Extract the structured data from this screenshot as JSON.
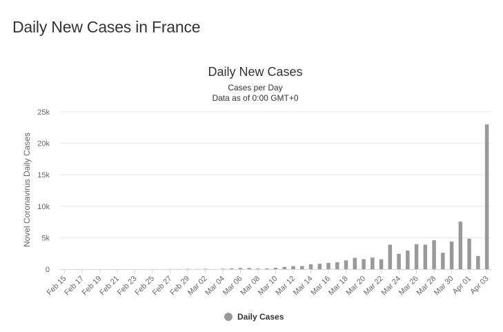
{
  "page": {
    "title": "Daily New Cases in France"
  },
  "colors": {
    "bar": "#999999",
    "grid": "#e6e6e6",
    "axis": "#ccd6eb",
    "text": "#666666"
  },
  "chart_data": {
    "type": "bar",
    "title": "Daily New Cases",
    "subtitle_lines": [
      "Cases per Day",
      "Data as of 0:00 GMT+0"
    ],
    "xlabel": "",
    "ylabel": "Novel Coronavirus Daily Cases",
    "ylim": [
      0,
      25000
    ],
    "yticks": [
      0,
      5000,
      10000,
      15000,
      20000,
      25000
    ],
    "ytick_labels": [
      "0",
      "5k",
      "10k",
      "15k",
      "20k",
      "25k"
    ],
    "categories": [
      "Feb 15",
      "Feb 16",
      "Feb 17",
      "Feb 18",
      "Feb 19",
      "Feb 20",
      "Feb 21",
      "Feb 22",
      "Feb 23",
      "Feb 24",
      "Feb 25",
      "Feb 26",
      "Feb 27",
      "Feb 28",
      "Feb 29",
      "Mar 01",
      "Mar 02",
      "Mar 03",
      "Mar 04",
      "Mar 05",
      "Mar 06",
      "Mar 07",
      "Mar 08",
      "Mar 09",
      "Mar 10",
      "Mar 11",
      "Mar 12",
      "Mar 13",
      "Mar 14",
      "Mar 15",
      "Mar 16",
      "Mar 17",
      "Mar 18",
      "Mar 19",
      "Mar 20",
      "Mar 21",
      "Mar 22",
      "Mar 23",
      "Mar 24",
      "Mar 25",
      "Mar 26",
      "Mar 27",
      "Mar 28",
      "Mar 29",
      "Mar 30",
      "Mar 31",
      "Apr 01",
      "Apr 02",
      "Apr 03"
    ],
    "xtick_labels": [
      "Feb 15",
      "Feb 17",
      "Feb 19",
      "Feb 21",
      "Feb 23",
      "Feb 25",
      "Feb 27",
      "Feb 29",
      "Mar 02",
      "Mar 04",
      "Mar 06",
      "Mar 08",
      "Mar 10",
      "Mar 12",
      "Mar 14",
      "Mar 16",
      "Mar 18",
      "Mar 20",
      "Mar 22",
      "Mar 24",
      "Mar 26",
      "Mar 28",
      "Mar 30",
      "Apr 01",
      "Apr 03"
    ],
    "series": [
      {
        "name": "Daily Cases",
        "values": [
          0,
          0,
          0,
          0,
          0,
          0,
          0,
          0,
          0,
          0,
          2,
          4,
          20,
          19,
          43,
          30,
          61,
          12,
          73,
          138,
          190,
          183,
          100,
          127,
          220,
          370,
          488,
          500,
          786,
          862,
          1000,
          1100,
          1400,
          1800,
          1600,
          1850,
          1570,
          3900,
          2450,
          2950,
          3970,
          3900,
          4600,
          2600,
          4400,
          7550,
          4850,
          2100,
          23000
        ]
      }
    ],
    "legend": {
      "position": "bottom-center",
      "label": "Daily Cases"
    }
  }
}
